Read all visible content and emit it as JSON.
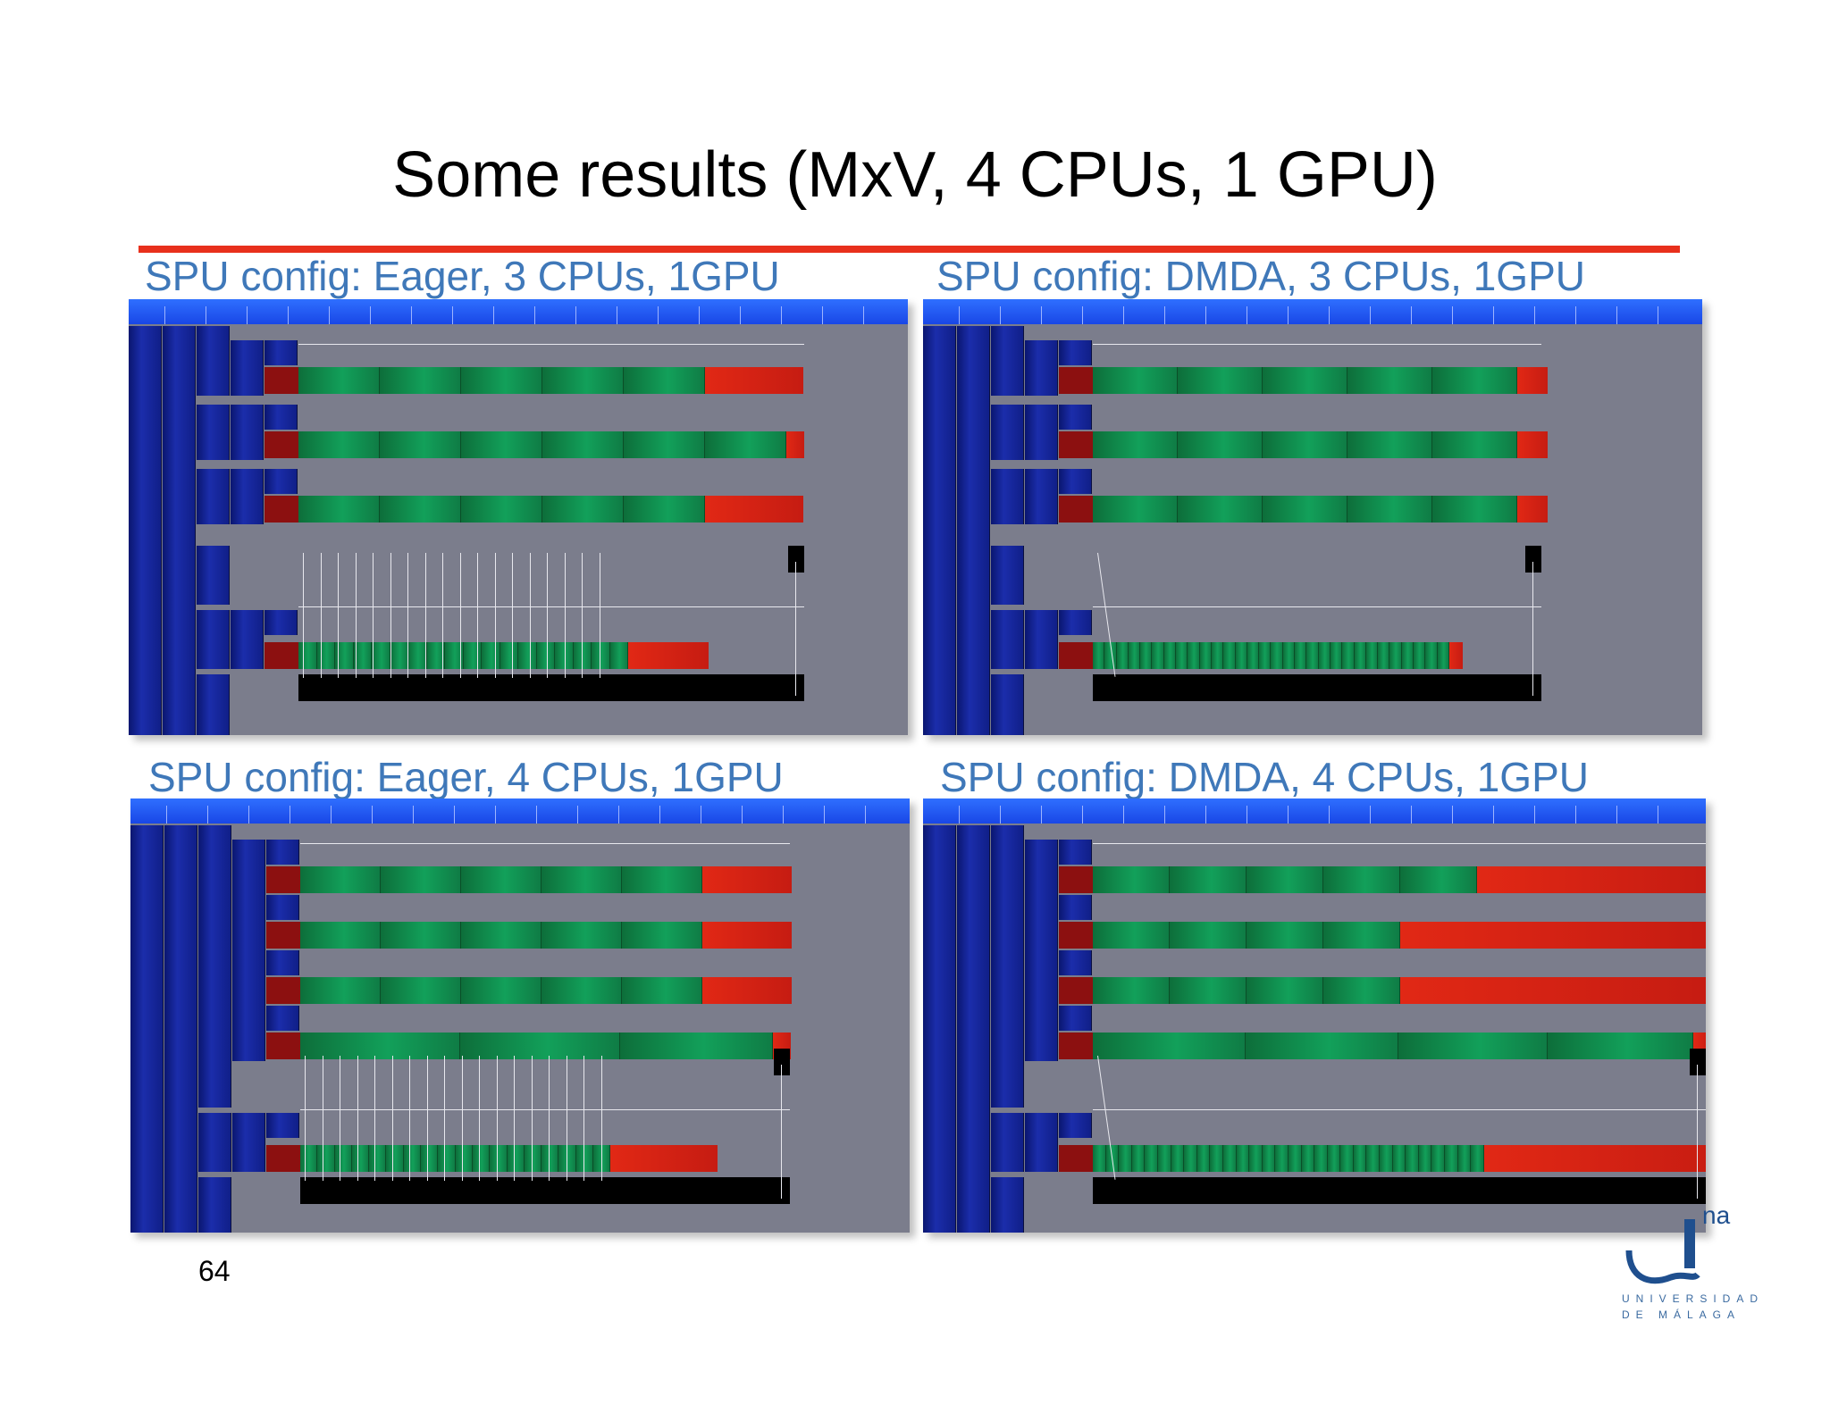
{
  "slide": {
    "title": "Some results (MxV, 4 CPUs, 1 GPU)",
    "page_number": "64",
    "accent_color": "#e8301c",
    "label_color": "#3f78b9"
  },
  "panels": [
    {
      "label": "SPU config: Eager, 3 CPUs, 1GPU"
    },
    {
      "label": "SPU config: DMDA, 3 CPUs, 1GPU"
    },
    {
      "label": "SPU config: Eager, 4 CPUs, 1GPU"
    },
    {
      "label": "SPU config: DMDA, 4 CPUs, 1GPU"
    }
  ],
  "logo": {
    "partial_text": "na",
    "line1": "UNIVERSIDAD",
    "line2": "DE MÁLAGA",
    "icon": "university-logo-icon"
  }
}
